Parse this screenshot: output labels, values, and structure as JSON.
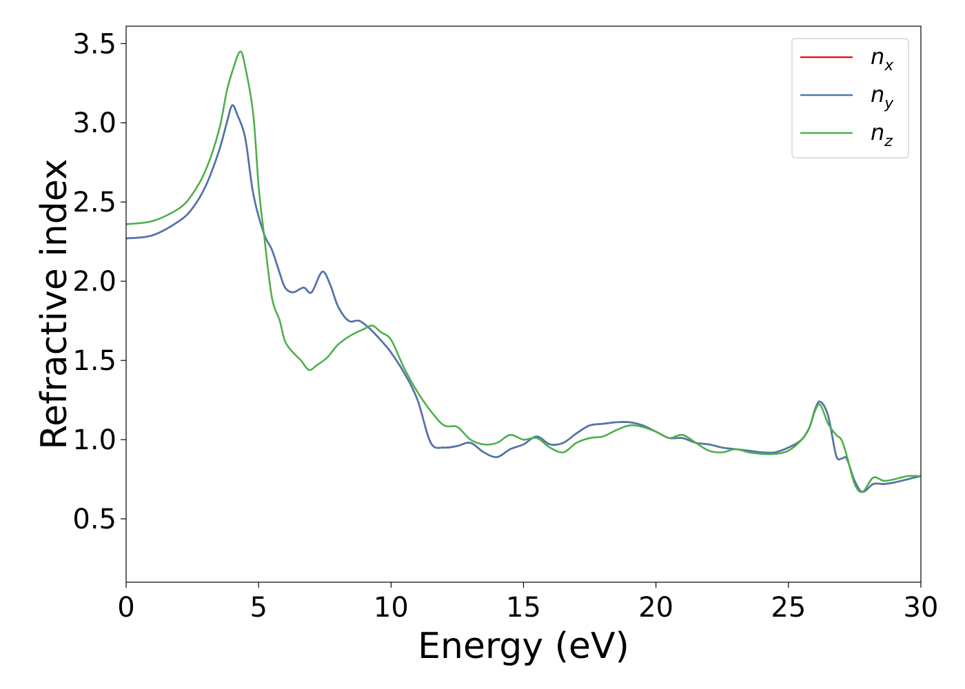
{
  "chart_data": {
    "type": "line",
    "title": "",
    "xlabel": "Energy (eV)",
    "ylabel": "Refractive index",
    "xlim": [
      0,
      30
    ],
    "ylim": [
      0.1,
      3.61
    ],
    "xticks": [
      0,
      5,
      10,
      15,
      20,
      25,
      30
    ],
    "yticks": [
      0.5,
      1.0,
      1.5,
      2.0,
      2.5,
      3.0,
      3.5
    ],
    "xtick_labels": [
      "0",
      "5",
      "10",
      "15",
      "20",
      "25",
      "30"
    ],
    "ytick_labels": [
      "0.5",
      "1.0",
      "1.5",
      "2.0",
      "2.5",
      "3.0",
      "3.5"
    ],
    "grid": false,
    "legend_position": "top-right",
    "series": [
      {
        "name_base": "n",
        "name_sub": "x",
        "color": "#e41a1c",
        "x": [
          0,
          1,
          2,
          2.5,
          3,
          3.5,
          3.8,
          4.0,
          4.2,
          4.5,
          4.8,
          5.2,
          5.5,
          5.8,
          6.0,
          6.3,
          6.7,
          7.0,
          7.4,
          7.7,
          8.0,
          8.4,
          8.8,
          9.2,
          9.6,
          10.0,
          10.5,
          11.0,
          11.5,
          12.0,
          12.5,
          13.0,
          13.5,
          14.0,
          14.5,
          15.0,
          15.5,
          16.0,
          16.5,
          17.0,
          17.5,
          18.0,
          18.5,
          19.0,
          19.5,
          20.0,
          20.5,
          21.0,
          21.5,
          22.0,
          22.5,
          23.0,
          23.5,
          24.0,
          24.5,
          25.0,
          25.5,
          25.8,
          26.0,
          26.2,
          26.5,
          26.8,
          27.0,
          27.2,
          27.5,
          27.8,
          28.2,
          28.6,
          29.0,
          29.5,
          30.0
        ],
        "y": [
          2.27,
          2.29,
          2.38,
          2.46,
          2.6,
          2.82,
          3.0,
          3.11,
          3.05,
          2.9,
          2.55,
          2.3,
          2.2,
          2.05,
          1.96,
          1.93,
          1.96,
          1.93,
          2.06,
          1.98,
          1.84,
          1.75,
          1.75,
          1.7,
          1.63,
          1.55,
          1.42,
          1.25,
          0.98,
          0.95,
          0.96,
          0.98,
          0.92,
          0.89,
          0.94,
          0.97,
          1.02,
          0.97,
          0.98,
          1.04,
          1.09,
          1.1,
          1.11,
          1.11,
          1.09,
          1.05,
          1.01,
          1.01,
          0.98,
          0.97,
          0.95,
          0.94,
          0.93,
          0.92,
          0.92,
          0.95,
          1.0,
          1.08,
          1.19,
          1.24,
          1.15,
          0.9,
          0.88,
          0.88,
          0.74,
          0.67,
          0.72,
          0.72,
          0.73,
          0.75,
          0.77
        ]
      },
      {
        "name_base": "n",
        "name_sub": "y",
        "color": "#4a78b0",
        "x": [
          0,
          1,
          2,
          2.5,
          3,
          3.5,
          3.8,
          4.0,
          4.2,
          4.5,
          4.8,
          5.2,
          5.5,
          5.8,
          6.0,
          6.3,
          6.7,
          7.0,
          7.4,
          7.7,
          8.0,
          8.4,
          8.8,
          9.2,
          9.6,
          10.0,
          10.5,
          11.0,
          11.5,
          12.0,
          12.5,
          13.0,
          13.5,
          14.0,
          14.5,
          15.0,
          15.5,
          16.0,
          16.5,
          17.0,
          17.5,
          18.0,
          18.5,
          19.0,
          19.5,
          20.0,
          20.5,
          21.0,
          21.5,
          22.0,
          22.5,
          23.0,
          23.5,
          24.0,
          24.5,
          25.0,
          25.5,
          25.8,
          26.0,
          26.2,
          26.5,
          26.8,
          27.0,
          27.2,
          27.5,
          27.8,
          28.2,
          28.6,
          29.0,
          29.5,
          30.0
        ],
        "y": [
          2.27,
          2.29,
          2.38,
          2.46,
          2.6,
          2.82,
          3.0,
          3.11,
          3.05,
          2.9,
          2.55,
          2.3,
          2.2,
          2.05,
          1.96,
          1.93,
          1.96,
          1.93,
          2.06,
          1.98,
          1.84,
          1.75,
          1.75,
          1.7,
          1.63,
          1.55,
          1.42,
          1.25,
          0.98,
          0.95,
          0.96,
          0.98,
          0.92,
          0.89,
          0.94,
          0.97,
          1.02,
          0.97,
          0.98,
          1.04,
          1.09,
          1.1,
          1.11,
          1.11,
          1.09,
          1.05,
          1.01,
          1.01,
          0.98,
          0.97,
          0.95,
          0.94,
          0.93,
          0.92,
          0.92,
          0.95,
          1.0,
          1.08,
          1.19,
          1.24,
          1.15,
          0.9,
          0.88,
          0.88,
          0.74,
          0.67,
          0.72,
          0.72,
          0.73,
          0.75,
          0.77
        ]
      },
      {
        "name_base": "n",
        "name_sub": "z",
        "color": "#4daf4a",
        "x": [
          0,
          1,
          2,
          2.5,
          3,
          3.5,
          3.8,
          4.0,
          4.3,
          4.5,
          4.8,
          5.0,
          5.2,
          5.5,
          5.8,
          6.0,
          6.3,
          6.6,
          6.9,
          7.2,
          7.6,
          8.0,
          8.5,
          9.0,
          9.3,
          9.6,
          10.0,
          10.5,
          11.0,
          11.5,
          12.0,
          12.5,
          13.0,
          13.5,
          14.0,
          14.5,
          15.0,
          15.5,
          16.0,
          16.5,
          17.0,
          17.5,
          18.0,
          18.5,
          19.0,
          19.5,
          20.0,
          20.5,
          21.0,
          21.5,
          22.0,
          22.5,
          23.0,
          23.5,
          24.0,
          24.5,
          25.0,
          25.5,
          25.8,
          26.0,
          26.2,
          26.5,
          26.8,
          27.0,
          27.2,
          27.5,
          27.8,
          28.2,
          28.6,
          29.0,
          29.5,
          30.0
        ],
        "y": [
          2.36,
          2.38,
          2.46,
          2.55,
          2.7,
          2.95,
          3.2,
          3.32,
          3.45,
          3.35,
          3.05,
          2.6,
          2.3,
          1.9,
          1.75,
          1.62,
          1.55,
          1.5,
          1.44,
          1.47,
          1.52,
          1.6,
          1.66,
          1.7,
          1.72,
          1.68,
          1.63,
          1.45,
          1.3,
          1.18,
          1.09,
          1.08,
          1.0,
          0.97,
          0.98,
          1.03,
          1.0,
          1.01,
          0.95,
          0.92,
          0.98,
          1.01,
          1.02,
          1.06,
          1.09,
          1.08,
          1.05,
          1.01,
          1.03,
          0.98,
          0.93,
          0.92,
          0.94,
          0.92,
          0.91,
          0.91,
          0.93,
          1.0,
          1.08,
          1.18,
          1.22,
          1.1,
          1.03,
          1.0,
          0.9,
          0.72,
          0.67,
          0.76,
          0.74,
          0.75,
          0.77,
          0.77
        ]
      }
    ]
  }
}
